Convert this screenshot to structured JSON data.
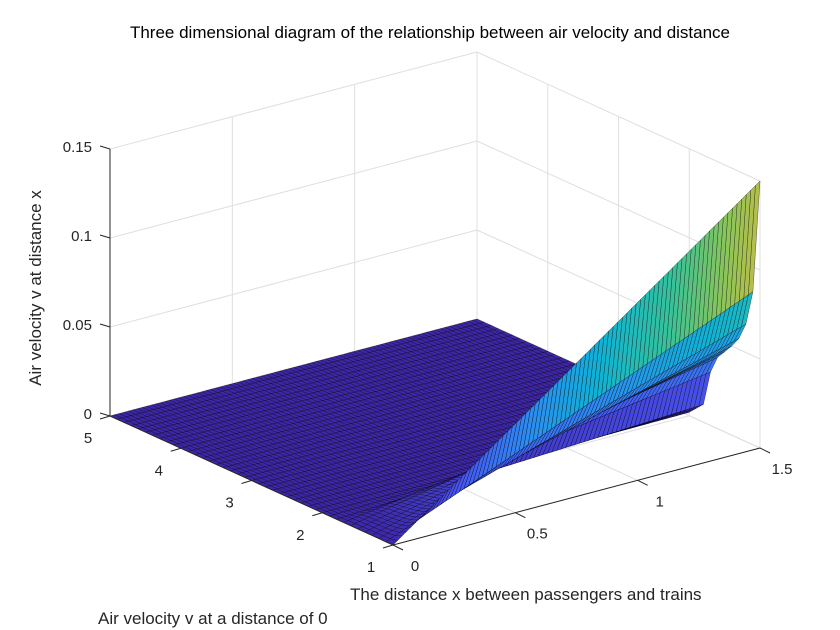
{
  "chart_data": {
    "type": "surface",
    "title": "Three dimensional diagram of the relationship between air velocity and distance",
    "xlabel": "The distance x between passengers and trains",
    "ylabel": "Air velocity v at a distance of 0",
    "zlabel": "Air velocity v at distance x",
    "xlim": [
      0,
      1.5
    ],
    "ylim": [
      1,
      5
    ],
    "zlim": [
      0,
      0.15
    ],
    "xticks": [
      "0",
      "0.5",
      "1",
      "1.5"
    ],
    "yticks": [
      "1",
      "2",
      "3",
      "4",
      "5"
    ],
    "zticks": [
      "0",
      "0.05",
      "0.1",
      "0.15"
    ],
    "grid": true,
    "colormap": "parula",
    "surface_profile_at_x_max": {
      "x": 1.5,
      "v": [
        1,
        1.1,
        1.2,
        1.3,
        1.4,
        1.5,
        1.6,
        1.7,
        1.8,
        2.0,
        2.5,
        5
      ],
      "z": [
        0.15,
        0.086,
        0.066,
        0.056,
        0.05,
        0.045,
        0.04,
        0.03,
        0.01,
        0.002,
        0,
        0
      ]
    },
    "z_scales_linearly_with_x_from": 0
  }
}
